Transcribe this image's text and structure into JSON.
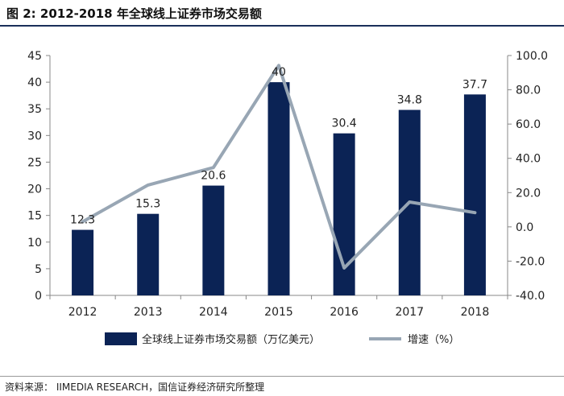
{
  "header": {
    "title": "图 2:  2012-2018 年全球线上证券市场交易额"
  },
  "footer": {
    "source": "资料来源： IIMEDIA RESEARCH，国信证券经济研究所整理"
  },
  "colors": {
    "bar": "#0b2355",
    "line": "#98a6b4",
    "title_rule": "#1a2f5a",
    "axis": "#888888"
  },
  "chart_data": {
    "type": "bar",
    "title": "2012-2018 年全球线上证券市场交易额",
    "categories": [
      "2012",
      "2013",
      "2014",
      "2015",
      "2016",
      "2017",
      "2018"
    ],
    "series": [
      {
        "name": "全球线上证券市场交易额（万亿美元）",
        "type": "bar",
        "axis": "left",
        "values": [
          12.3,
          15.3,
          20.6,
          40,
          30.4,
          34.8,
          37.7
        ],
        "labels": [
          "12.3",
          "15.3",
          "20.6",
          "40",
          "30.4",
          "34.8",
          "37.7"
        ]
      },
      {
        "name": "增速（%）",
        "type": "line",
        "axis": "right",
        "values": [
          3,
          24.4,
          34.6,
          94.2,
          -24,
          14.5,
          8.3
        ]
      }
    ],
    "y_left": {
      "min": 0,
      "max": 45,
      "step": 5,
      "ticks": [
        "0",
        "5",
        "10",
        "15",
        "20",
        "25",
        "30",
        "35",
        "40",
        "45"
      ]
    },
    "y_right": {
      "min": -40,
      "max": 100,
      "step": 20,
      "ticks": [
        "-40.0",
        "-20.0",
        "0.0",
        "20.0",
        "40.0",
        "60.0",
        "80.0",
        "100.0"
      ]
    },
    "legend": {
      "position": "bottom"
    },
    "grid": false
  }
}
